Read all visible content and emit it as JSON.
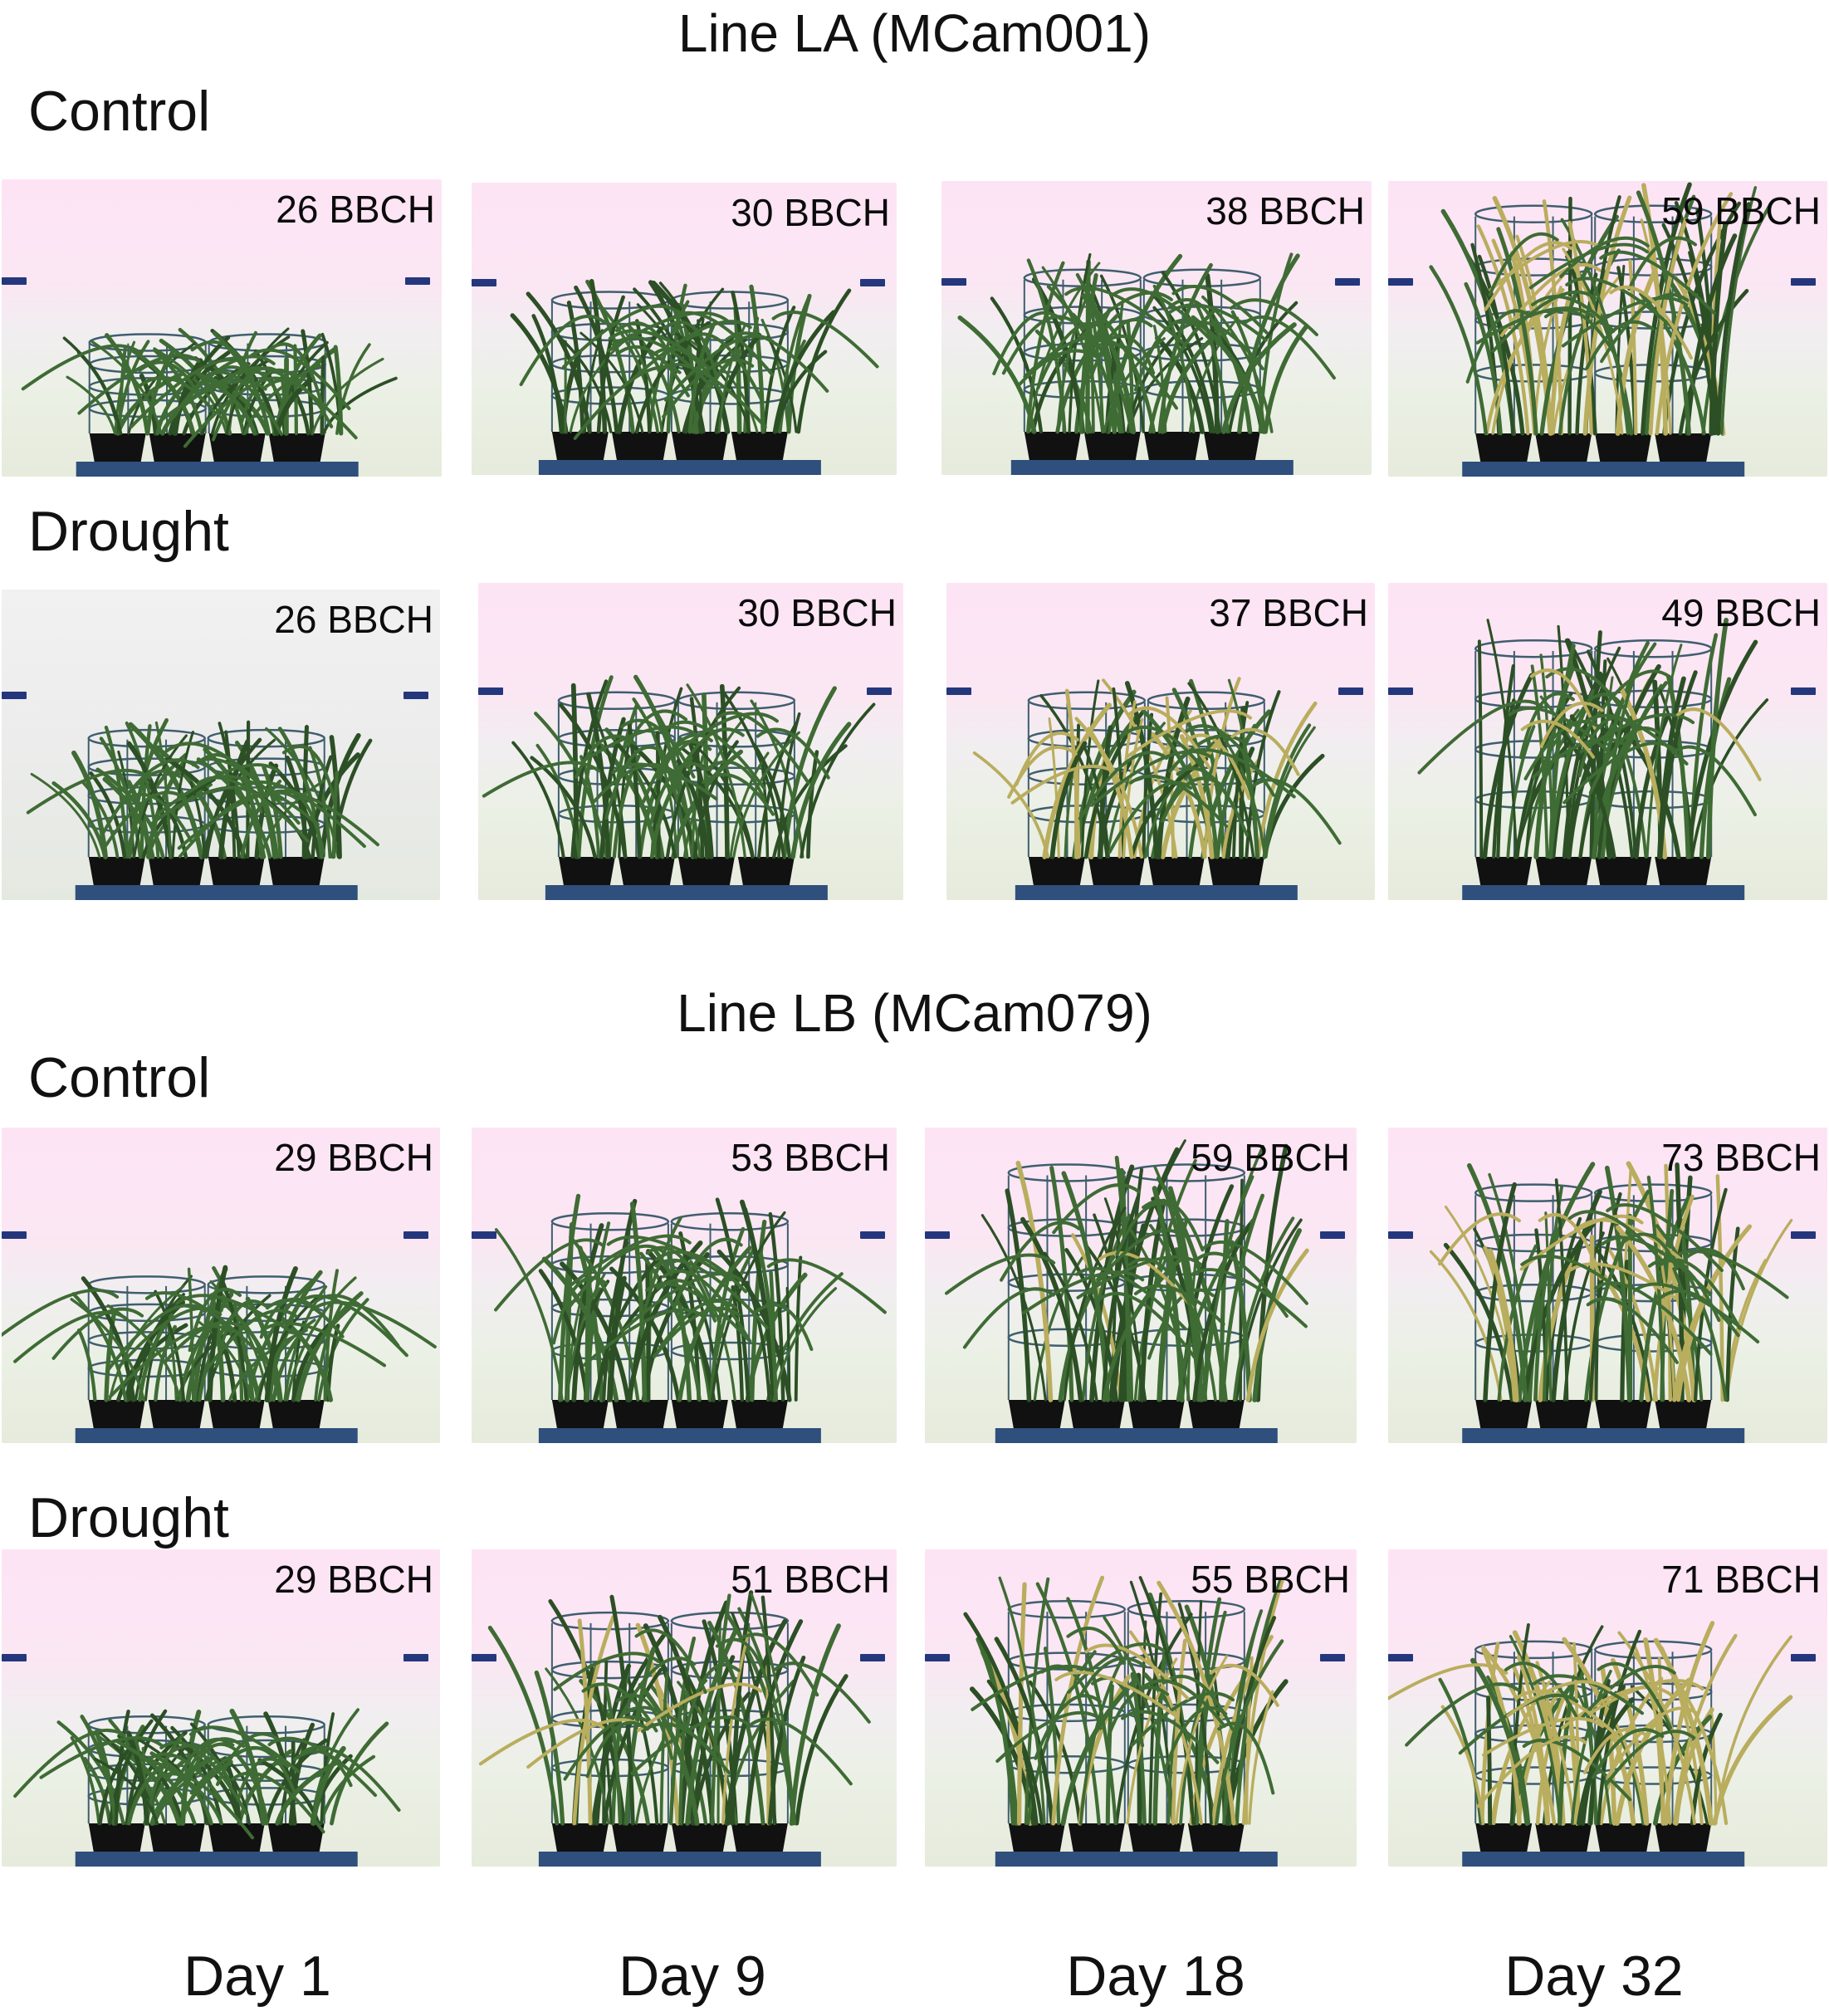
{
  "sections": [
    {
      "title": "Line LA (MCam001)",
      "rows": [
        {
          "condition": "Control",
          "stages": [
            "26 BBCH",
            "30 BBCH",
            "38 BBCH",
            "59 BBCH"
          ]
        },
        {
          "condition": "Drought",
          "stages": [
            "26 BBCH",
            "30 BBCH",
            "37 BBCH",
            "49 BBCH"
          ]
        }
      ]
    },
    {
      "title": "Line LB (MCam079)",
      "rows": [
        {
          "condition": "Control",
          "stages": [
            "29 BBCH",
            "53 BBCH",
            "59 BBCH",
            "73 BBCH"
          ]
        },
        {
          "condition": "Drought",
          "stages": [
            "29 BBCH",
            "51 BBCH",
            "55 BBCH",
            "71 BBCH"
          ]
        }
      ]
    }
  ],
  "days": [
    "Day 1",
    "Day 9",
    "Day 18",
    "Day 32"
  ],
  "colors": {
    "marker": "#24377c",
    "leaf": "#3f6b34",
    "leaf_dark": "#2c4f25",
    "leaf_dry": "#b9ad5e",
    "cage": "#3f5e6e",
    "pot": "#111111",
    "table": "#2f4f7d"
  }
}
